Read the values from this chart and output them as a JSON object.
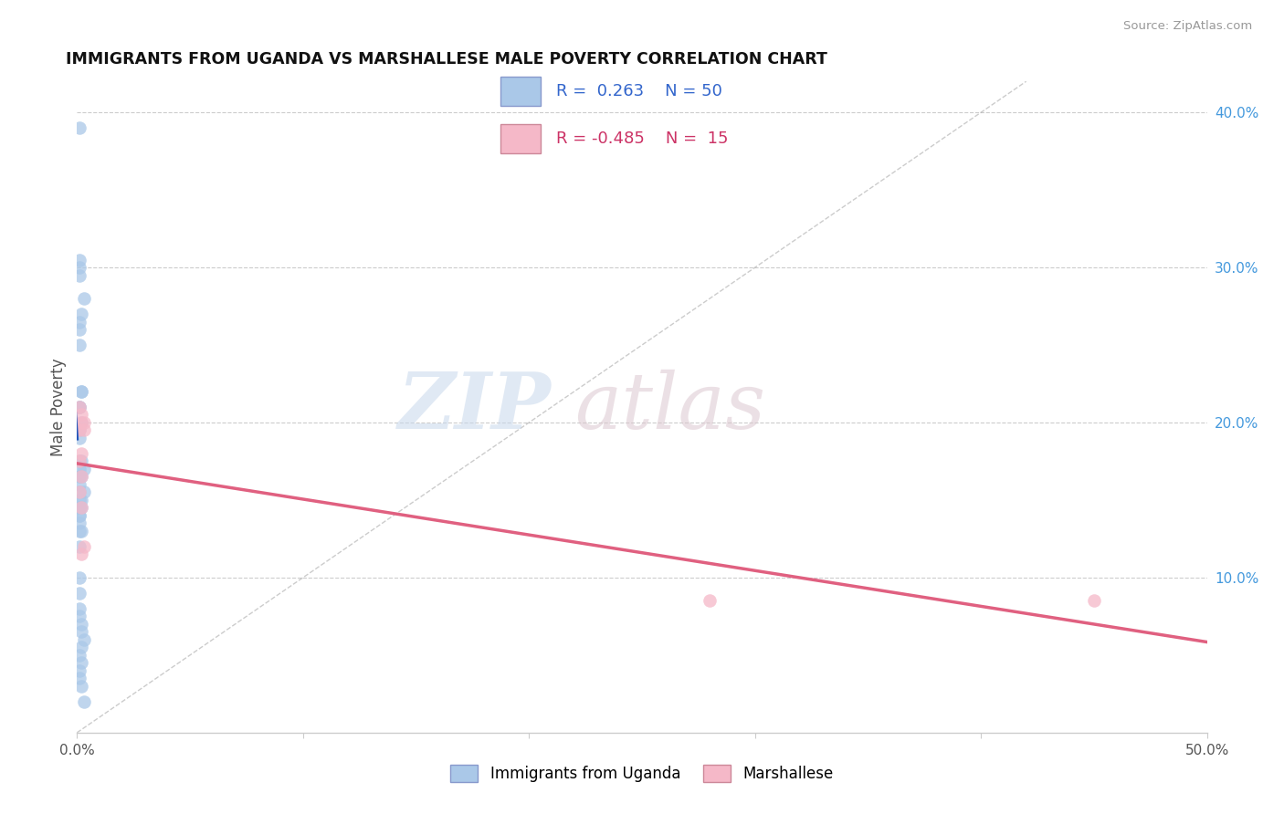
{
  "title": "IMMIGRANTS FROM UGANDA VS MARSHALLESE MALE POVERTY CORRELATION CHART",
  "source": "Source: ZipAtlas.com",
  "ylabel": "Male Poverty",
  "xlim": [
    0.0,
    0.5
  ],
  "ylim": [
    0.0,
    0.42
  ],
  "x_ticks": [
    0.0,
    0.1,
    0.2,
    0.3,
    0.4,
    0.5
  ],
  "x_tick_labels": [
    "0.0%",
    "",
    "",
    "",
    "",
    "50.0%"
  ],
  "y_ticks_right": [
    0.1,
    0.2,
    0.3,
    0.4
  ],
  "y_tick_labels_right": [
    "10.0%",
    "20.0%",
    "30.0%",
    "40.0%"
  ],
  "color_blue": "#aac8e8",
  "color_pink": "#f5b8c8",
  "line_blue": "#2255bb",
  "line_pink": "#e06080",
  "uganda_x": [
    0.001,
    0.003,
    0.001,
    0.002,
    0.001,
    0.001,
    0.001,
    0.002,
    0.001,
    0.001,
    0.001,
    0.001,
    0.002,
    0.001,
    0.001,
    0.001,
    0.002,
    0.001,
    0.001,
    0.001,
    0.001,
    0.001,
    0.001,
    0.001,
    0.002,
    0.001,
    0.001,
    0.001,
    0.002,
    0.001,
    0.002,
    0.003,
    0.003,
    0.002,
    0.001,
    0.002,
    0.001,
    0.001,
    0.001,
    0.001,
    0.002,
    0.002,
    0.003,
    0.002,
    0.001,
    0.002,
    0.001,
    0.001,
    0.002,
    0.003
  ],
  "uganda_y": [
    0.39,
    0.28,
    0.305,
    0.22,
    0.3,
    0.295,
    0.265,
    0.27,
    0.26,
    0.25,
    0.21,
    0.21,
    0.22,
    0.19,
    0.175,
    0.17,
    0.2,
    0.195,
    0.165,
    0.16,
    0.155,
    0.15,
    0.145,
    0.14,
    0.175,
    0.14,
    0.145,
    0.135,
    0.165,
    0.13,
    0.15,
    0.155,
    0.17,
    0.145,
    0.12,
    0.13,
    0.1,
    0.09,
    0.08,
    0.075,
    0.07,
    0.065,
    0.06,
    0.055,
    0.05,
    0.045,
    0.04,
    0.035,
    0.03,
    0.02
  ],
  "marshallese_x": [
    0.001,
    0.001,
    0.002,
    0.002,
    0.003,
    0.003,
    0.002,
    0.001,
    0.002,
    0.001,
    0.002,
    0.003,
    0.28,
    0.45,
    0.002
  ],
  "marshallese_y": [
    0.21,
    0.195,
    0.2,
    0.205,
    0.195,
    0.2,
    0.18,
    0.175,
    0.165,
    0.155,
    0.145,
    0.12,
    0.085,
    0.085,
    0.115
  ]
}
